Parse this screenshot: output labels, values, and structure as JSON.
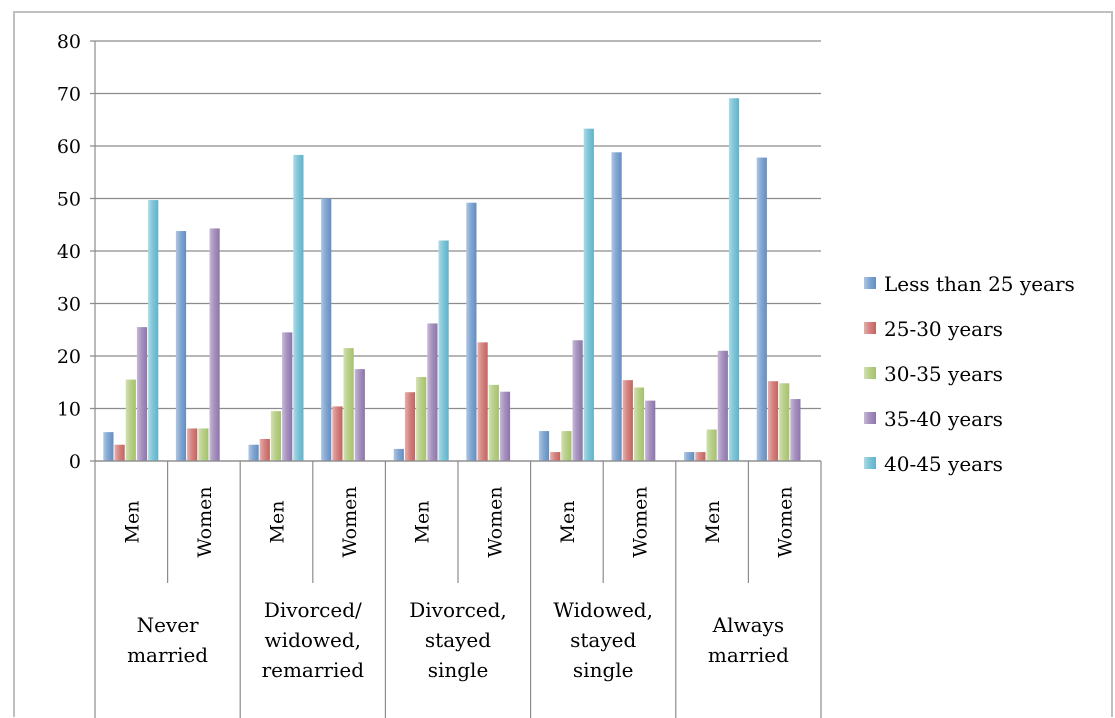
{
  "chart_data": {
    "type": "bar",
    "ylim": [
      0,
      80
    ],
    "yticks": [
      "0",
      "10",
      "20",
      "30",
      "40",
      "50",
      "60",
      "70",
      "80"
    ],
    "grid": true,
    "legend_position": "right",
    "groups": [
      {
        "lines": [
          "Never",
          "married"
        ],
        "subcategories": [
          "Men",
          "Women"
        ]
      },
      {
        "lines": [
          "Divorced/",
          "widowed,",
          "remarried"
        ],
        "subcategories": [
          "Men",
          "Women"
        ]
      },
      {
        "lines": [
          "Divorced,",
          "stayed",
          "single"
        ],
        "subcategories": [
          "Men",
          "Women"
        ]
      },
      {
        "lines": [
          "Widowed,",
          "stayed",
          "single"
        ],
        "subcategories": [
          "Men",
          "Women"
        ]
      },
      {
        "lines": [
          "Always",
          "married"
        ],
        "subcategories": [
          "Men",
          "Women"
        ]
      }
    ],
    "categories": [
      "Never married - Men",
      "Never married - Women",
      "Divorced/widowed, remarried - Men",
      "Divorced/widowed, remarried - Women",
      "Divorced, stayed single - Men",
      "Divorced, stayed single - Women",
      "Widowed, stayed single - Men",
      "Widowed, stayed single - Women",
      "Always married - Men",
      "Always married - Women"
    ],
    "series": [
      {
        "name": "Less than 25 years",
        "color": "#4f81bd",
        "values": [
          5.5,
          43.8,
          3.1,
          50.0,
          2.3,
          49.2,
          5.7,
          58.8,
          1.7,
          57.8
        ]
      },
      {
        "name": "25-30 years",
        "color": "#c0504d",
        "values": [
          3.1,
          6.2,
          4.2,
          10.4,
          13.1,
          22.6,
          1.7,
          15.4,
          1.7,
          15.2
        ]
      },
      {
        "name": "30-35 years",
        "color": "#9bbb59",
        "values": [
          15.5,
          6.2,
          9.5,
          21.5,
          16.0,
          14.5,
          5.7,
          14.0,
          6.0,
          14.8
        ]
      },
      {
        "name": "35-40 years",
        "color": "#8064a2",
        "values": [
          25.5,
          44.3,
          24.5,
          17.5,
          26.2,
          13.2,
          23.0,
          11.5,
          21.0,
          11.8
        ]
      },
      {
        "name": "40-45 years",
        "color": "#4bacc6",
        "values": [
          49.7,
          0,
          58.3,
          0,
          42.0,
          0,
          63.3,
          0,
          69.1,
          0
        ]
      }
    ]
  }
}
